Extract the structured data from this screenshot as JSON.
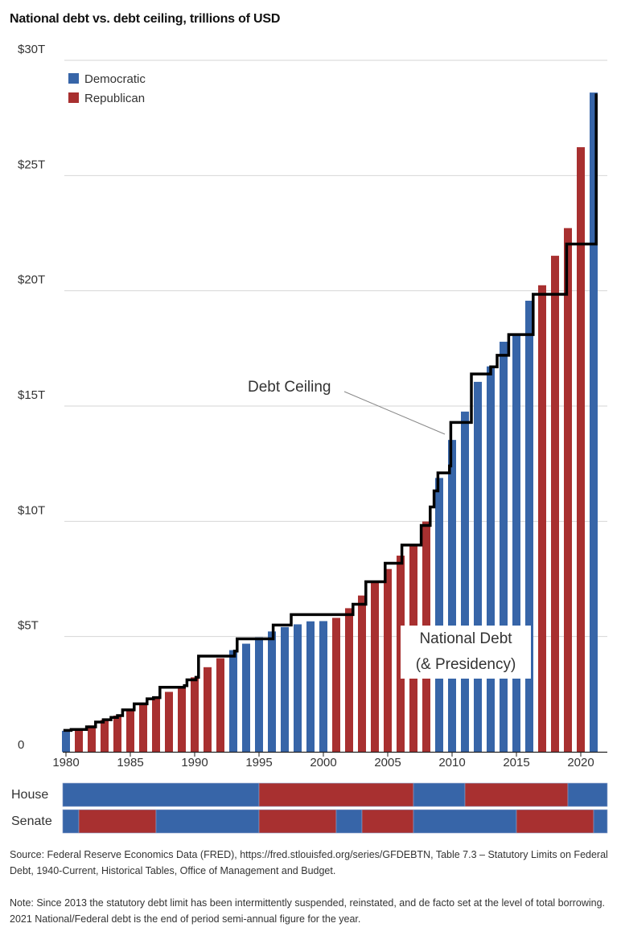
{
  "title": "National debt vs. debt ceiling, trillions of USD",
  "chart_data": {
    "type": "bar",
    "title": "National debt vs. debt ceiling, trillions of USD",
    "ylim": [
      0,
      30
    ],
    "yticks": [
      0,
      5,
      10,
      15,
      20,
      25,
      30
    ],
    "ytick_labels": [
      "0",
      "$5T",
      "$10T",
      "$15T",
      "$20T",
      "$25T",
      "$30T"
    ],
    "xticks": [
      1980,
      1985,
      1990,
      1995,
      2000,
      2005,
      2010,
      2015,
      2020
    ],
    "xtick_labels": [
      "1980",
      "1985",
      "1990",
      "1995",
      "2000",
      "2005",
      "2010",
      "2015",
      "2020"
    ],
    "grid": "horizontal",
    "legend": {
      "placement": "top-left",
      "entries": [
        {
          "name": "Democratic",
          "color": "#3765a8"
        },
        {
          "name": "Republican",
          "color": "#a83030"
        }
      ]
    },
    "colors": {
      "Democratic": "#3765a8",
      "Republican": "#a83030",
      "ceiling": "#000000"
    },
    "national_debt": {
      "years": [
        1980,
        1981,
        1982,
        1983,
        1984,
        1985,
        1986,
        1987,
        1988,
        1989,
        1990,
        1991,
        1992,
        1993,
        1994,
        1995,
        1996,
        1997,
        1998,
        1999,
        2000,
        2001,
        2002,
        2003,
        2004,
        2005,
        2006,
        2007,
        2008,
        2009,
        2010,
        2011,
        2012,
        2013,
        2014,
        2015,
        2016,
        2017,
        2018,
        2019,
        2020,
        2021
      ],
      "values": [
        0.91,
        1.0,
        1.14,
        1.38,
        1.57,
        1.82,
        2.13,
        2.35,
        2.6,
        2.86,
        3.23,
        3.67,
        4.06,
        4.41,
        4.69,
        4.97,
        5.22,
        5.41,
        5.53,
        5.66,
        5.67,
        5.81,
        6.23,
        6.78,
        7.38,
        7.93,
        8.51,
        9.0,
        9.99,
        11.88,
        13.53,
        14.76,
        16.05,
        16.72,
        17.79,
        18.15,
        19.57,
        20.24,
        21.52,
        22.72,
        26.23,
        28.6
      ],
      "presidency": [
        "Democratic",
        "Republican",
        "Republican",
        "Republican",
        "Republican",
        "Republican",
        "Republican",
        "Republican",
        "Republican",
        "Republican",
        "Republican",
        "Republican",
        "Republican",
        "Democratic",
        "Democratic",
        "Democratic",
        "Democratic",
        "Democratic",
        "Democratic",
        "Democratic",
        "Democratic",
        "Republican",
        "Republican",
        "Republican",
        "Republican",
        "Republican",
        "Republican",
        "Republican",
        "Republican",
        "Democratic",
        "Democratic",
        "Democratic",
        "Democratic",
        "Democratic",
        "Democratic",
        "Democratic",
        "Democratic",
        "Republican",
        "Republican",
        "Republican",
        "Republican",
        "Democratic"
      ]
    },
    "debt_ceiling_steps": [
      [
        1979.8,
        0.93
      ],
      [
        1980.4,
        0.97
      ],
      [
        1981.6,
        1.08
      ],
      [
        1982.3,
        1.29
      ],
      [
        1982.9,
        1.39
      ],
      [
        1983.5,
        1.49
      ],
      [
        1984.0,
        1.57
      ],
      [
        1984.4,
        1.82
      ],
      [
        1985.3,
        2.08
      ],
      [
        1986.3,
        2.3
      ],
      [
        1986.8,
        2.35
      ],
      [
        1987.3,
        2.8
      ],
      [
        1989.2,
        2.87
      ],
      [
        1989.4,
        3.12
      ],
      [
        1990.1,
        3.23
      ],
      [
        1990.3,
        4.15
      ],
      [
        1993.1,
        4.37
      ],
      [
        1993.3,
        4.9
      ],
      [
        1996.1,
        5.5
      ],
      [
        1997.5,
        5.95
      ],
      [
        2002.3,
        6.4
      ],
      [
        2003.3,
        7.38
      ],
      [
        2004.8,
        8.18
      ],
      [
        2006.1,
        8.97
      ],
      [
        2007.6,
        9.82
      ],
      [
        2008.3,
        10.62
      ],
      [
        2008.6,
        11.32
      ],
      [
        2008.9,
        12.1
      ],
      [
        2009.8,
        12.4
      ],
      [
        2009.9,
        14.29
      ],
      [
        2011.5,
        16.39
      ],
      [
        2013.0,
        16.7
      ],
      [
        2013.5,
        17.2
      ],
      [
        2014.4,
        18.1
      ],
      [
        2015.9,
        18.1
      ],
      [
        2016.3,
        19.85
      ],
      [
        2018.7,
        19.85
      ],
      [
        2018.9,
        22.03
      ],
      [
        2021.1,
        22.03
      ],
      [
        2021.2,
        28.5
      ],
      [
        2021.3,
        28.5
      ]
    ],
    "annotations": {
      "ceiling_label": "Debt Ceiling",
      "debt_label_line1": "National Debt",
      "debt_label_line2": "(& Presidency)"
    },
    "congress": {
      "range": [
        1979.75,
        2022.06
      ],
      "rows": [
        {
          "label": "House",
          "segments": [
            [
              1979.75,
              1995,
              "Democratic"
            ],
            [
              1995,
              2007,
              "Republican"
            ],
            [
              2007,
              2011,
              "Democratic"
            ],
            [
              2011,
              2019,
              "Republican"
            ],
            [
              2019,
              2022.06,
              "Democratic"
            ]
          ]
        },
        {
          "label": "Senate",
          "segments": [
            [
              1979.75,
              1981,
              "Democratic"
            ],
            [
              1981,
              1987,
              "Republican"
            ],
            [
              1987,
              1995,
              "Democratic"
            ],
            [
              1995,
              2001,
              "Republican"
            ],
            [
              2001,
              2003,
              "Democratic"
            ],
            [
              2003,
              2007,
              "Republican"
            ],
            [
              2007,
              2015,
              "Democratic"
            ],
            [
              2015,
              2021,
              "Republican"
            ],
            [
              2021,
              2022.06,
              "Democratic"
            ]
          ]
        }
      ]
    }
  },
  "source": "Source: Federal Reserve Economics Data (FRED), https://fred.stlouisfed.org/series/GFDEBTN, Table 7.3 – Statutory Limits on Federal Debt, 1940-Current, Historical Tables, Office of Management and Budget.",
  "note": "Note: Since 2013 the statutory debt limit has been intermittently suspended, reinstated, and de facto set at the level of total borrowing. 2021 National/Federal debt is the end of period semi-annual figure for the year."
}
